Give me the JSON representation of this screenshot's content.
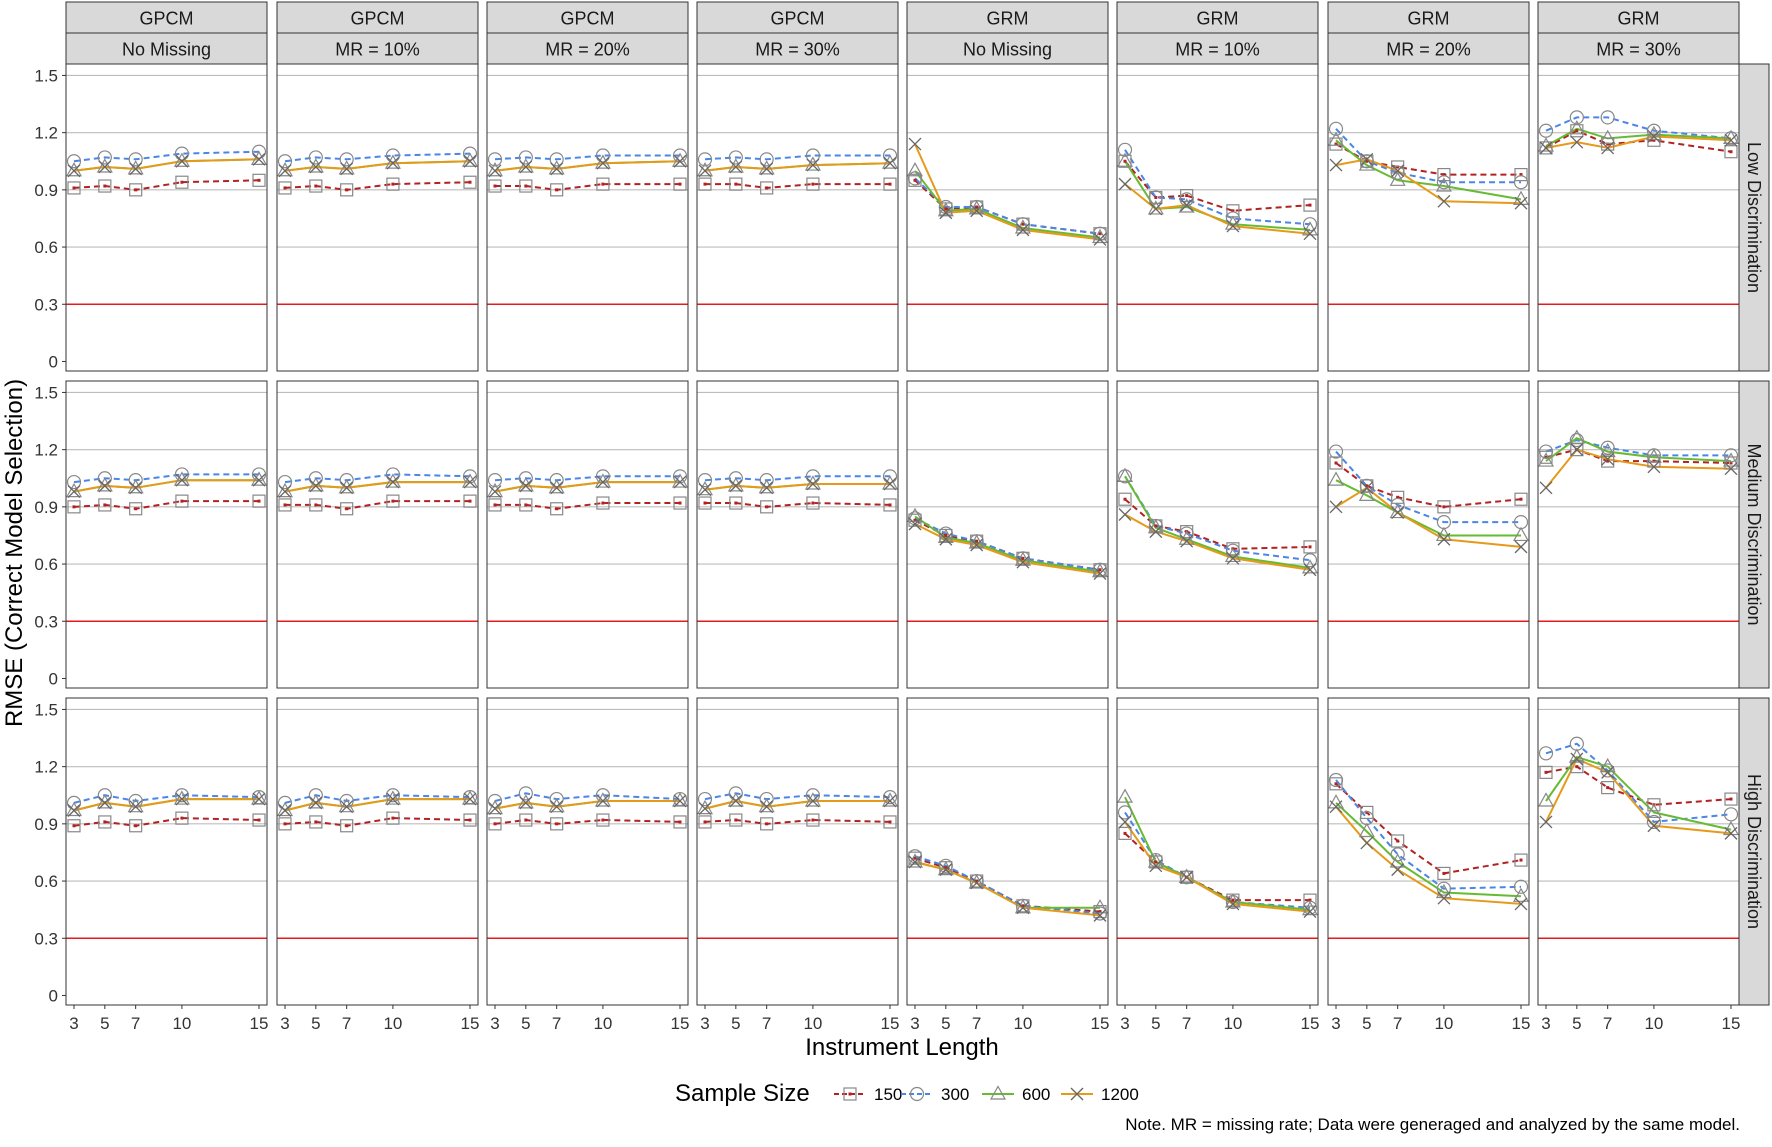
{
  "chart_data": {
    "type": "line",
    "facet_cols": [
      {
        "model": "GPCM",
        "condition": "No Missing"
      },
      {
        "model": "GPCM",
        "condition": "MR = 10%"
      },
      {
        "model": "GPCM",
        "condition": "MR = 20%"
      },
      {
        "model": "GPCM",
        "condition": "MR = 30%"
      },
      {
        "model": "GRM",
        "condition": "No Missing"
      },
      {
        "model": "GRM",
        "condition": "MR = 10%"
      },
      {
        "model": "GRM",
        "condition": "MR = 20%"
      },
      {
        "model": "GRM",
        "condition": "MR = 30%"
      }
    ],
    "facet_rows": [
      "Low Discrimination",
      "Medium Discrimination",
      "High Discrimination"
    ],
    "x": [
      3,
      5,
      7,
      10,
      15
    ],
    "x_ticks": [
      "3",
      "5",
      "7",
      "10",
      "15"
    ],
    "xlim": [
      3,
      15
    ],
    "ylim": [
      -0.05,
      1.56
    ],
    "y_ticks": [
      0,
      0.3,
      0.6,
      0.9,
      1.2,
      1.5
    ],
    "y_tick_labels": [
      "0",
      "0.3",
      "0.6",
      "0.9",
      "1.2",
      "1.5"
    ],
    "xlabel": "Instrument Length",
    "ylabel": "RMSE (Correct Model Selection)",
    "reference_line": {
      "y": 0.3,
      "color": "#e41a1c"
    },
    "grid": true,
    "legend": {
      "title": "Sample Size",
      "position": "bottom"
    },
    "series_styles": [
      {
        "name": "150",
        "color": "#b22222",
        "dash": "6,4",
        "marker": "square"
      },
      {
        "name": "300",
        "color": "#4a86e8",
        "dash": "6,4",
        "marker": "circle"
      },
      {
        "name": "600",
        "color": "#66bb33",
        "dash": "",
        "marker": "triangle"
      },
      {
        "name": "1200",
        "color": "#e69a1a",
        "dash": "",
        "marker": "x"
      }
    ],
    "panels": [
      [
        [
          [
            0.91,
            0.92,
            0.9,
            0.94,
            0.95
          ],
          [
            1.05,
            1.07,
            1.06,
            1.09,
            1.1
          ],
          [
            1.0,
            1.02,
            1.01,
            1.05,
            1.06
          ],
          [
            1.0,
            1.02,
            1.01,
            1.05,
            1.06
          ]
        ],
        [
          [
            0.91,
            0.92,
            0.9,
            0.93,
            0.94
          ],
          [
            1.05,
            1.07,
            1.06,
            1.08,
            1.09
          ],
          [
            1.0,
            1.02,
            1.01,
            1.04,
            1.05
          ],
          [
            1.0,
            1.02,
            1.01,
            1.04,
            1.05
          ]
        ],
        [
          [
            0.92,
            0.92,
            0.9,
            0.93,
            0.93
          ],
          [
            1.06,
            1.07,
            1.06,
            1.08,
            1.08
          ],
          [
            1.0,
            1.02,
            1.01,
            1.04,
            1.05
          ],
          [
            1.0,
            1.02,
            1.01,
            1.04,
            1.05
          ]
        ],
        [
          [
            0.93,
            0.93,
            0.91,
            0.93,
            0.93
          ],
          [
            1.06,
            1.07,
            1.06,
            1.08,
            1.08
          ],
          [
            1.0,
            1.02,
            1.01,
            1.03,
            1.04
          ],
          [
            1.0,
            1.02,
            1.01,
            1.03,
            1.04
          ]
        ],
        [
          [
            0.95,
            0.8,
            0.81,
            0.72,
            0.67
          ],
          [
            0.96,
            0.81,
            0.81,
            0.72,
            0.67
          ],
          [
            1.0,
            0.79,
            0.8,
            0.7,
            0.65
          ],
          [
            1.14,
            0.78,
            0.79,
            0.69,
            0.64
          ]
        ],
        [
          [
            1.05,
            0.86,
            0.87,
            0.79,
            0.82
          ],
          [
            1.11,
            0.86,
            0.85,
            0.75,
            0.72
          ],
          [
            1.05,
            0.8,
            0.81,
            0.72,
            0.69
          ],
          [
            0.93,
            0.8,
            0.82,
            0.71,
            0.67
          ]
        ],
        [
          [
            1.14,
            1.05,
            1.02,
            0.98,
            0.98
          ],
          [
            1.22,
            1.05,
            0.99,
            0.94,
            0.94
          ],
          [
            1.16,
            1.03,
            0.95,
            0.92,
            0.85
          ],
          [
            1.03,
            1.06,
            1.0,
            0.84,
            0.83
          ]
        ],
        [
          [
            1.12,
            1.21,
            1.14,
            1.16,
            1.1
          ],
          [
            1.21,
            1.28,
            1.28,
            1.21,
            1.17
          ],
          [
            1.13,
            1.22,
            1.17,
            1.19,
            1.17
          ],
          [
            1.12,
            1.15,
            1.12,
            1.18,
            1.16
          ]
        ]
      ],
      [
        [
          [
            0.9,
            0.91,
            0.89,
            0.93,
            0.93
          ],
          [
            1.03,
            1.05,
            1.04,
            1.07,
            1.07
          ],
          [
            0.98,
            1.01,
            1.0,
            1.04,
            1.04
          ],
          [
            0.98,
            1.01,
            1.0,
            1.04,
            1.04
          ]
        ],
        [
          [
            0.91,
            0.91,
            0.89,
            0.93,
            0.93
          ],
          [
            1.03,
            1.05,
            1.04,
            1.07,
            1.06
          ],
          [
            0.98,
            1.01,
            1.0,
            1.03,
            1.03
          ],
          [
            0.98,
            1.01,
            1.0,
            1.03,
            1.03
          ]
        ],
        [
          [
            0.91,
            0.91,
            0.89,
            0.92,
            0.92
          ],
          [
            1.04,
            1.05,
            1.04,
            1.06,
            1.06
          ],
          [
            0.98,
            1.01,
            1.0,
            1.03,
            1.03
          ],
          [
            0.98,
            1.01,
            1.0,
            1.03,
            1.03
          ]
        ],
        [
          [
            0.92,
            0.92,
            0.9,
            0.92,
            0.91
          ],
          [
            1.04,
            1.05,
            1.04,
            1.06,
            1.06
          ],
          [
            0.99,
            1.01,
            1.0,
            1.02,
            1.02
          ],
          [
            0.99,
            1.01,
            1.0,
            1.02,
            1.02
          ]
        ],
        [
          [
            0.83,
            0.75,
            0.72,
            0.63,
            0.57
          ],
          [
            0.84,
            0.76,
            0.72,
            0.63,
            0.57
          ],
          [
            0.85,
            0.74,
            0.71,
            0.62,
            0.56
          ],
          [
            0.81,
            0.73,
            0.7,
            0.61,
            0.55
          ]
        ],
        [
          [
            0.94,
            0.8,
            0.77,
            0.68,
            0.69
          ],
          [
            1.06,
            0.8,
            0.76,
            0.67,
            0.62
          ],
          [
            1.06,
            0.79,
            0.73,
            0.64,
            0.58
          ],
          [
            0.86,
            0.77,
            0.72,
            0.63,
            0.57
          ]
        ],
        [
          [
            1.13,
            1.01,
            0.95,
            0.9,
            0.94
          ],
          [
            1.19,
            1.01,
            0.91,
            0.82,
            0.82
          ],
          [
            1.04,
            0.96,
            0.87,
            0.75,
            0.75
          ],
          [
            0.9,
            1.0,
            0.87,
            0.73,
            0.69
          ]
        ],
        [
          [
            1.16,
            1.2,
            1.14,
            1.14,
            1.13
          ],
          [
            1.19,
            1.25,
            1.21,
            1.17,
            1.17
          ],
          [
            1.14,
            1.26,
            1.19,
            1.16,
            1.14
          ],
          [
            1.0,
            1.2,
            1.15,
            1.11,
            1.1
          ]
        ]
      ],
      [
        [
          [
            0.89,
            0.91,
            0.89,
            0.93,
            0.92
          ],
          [
            1.01,
            1.05,
            1.02,
            1.05,
            1.04
          ],
          [
            0.97,
            1.01,
            0.99,
            1.03,
            1.03
          ],
          [
            0.97,
            1.01,
            0.99,
            1.03,
            1.03
          ]
        ],
        [
          [
            0.9,
            0.91,
            0.89,
            0.93,
            0.92
          ],
          [
            1.01,
            1.05,
            1.02,
            1.05,
            1.04
          ],
          [
            0.97,
            1.01,
            0.99,
            1.03,
            1.03
          ],
          [
            0.97,
            1.01,
            0.99,
            1.03,
            1.03
          ]
        ],
        [
          [
            0.9,
            0.92,
            0.9,
            0.92,
            0.91
          ],
          [
            1.02,
            1.06,
            1.03,
            1.05,
            1.03
          ],
          [
            0.98,
            1.01,
            0.99,
            1.02,
            1.02
          ],
          [
            0.98,
            1.01,
            0.99,
            1.02,
            1.02
          ]
        ],
        [
          [
            0.91,
            0.92,
            0.9,
            0.92,
            0.91
          ],
          [
            1.03,
            1.06,
            1.03,
            1.05,
            1.04
          ],
          [
            0.98,
            1.02,
            0.99,
            1.02,
            1.02
          ],
          [
            0.98,
            1.02,
            0.99,
            1.02,
            1.02
          ]
        ],
        [
          [
            0.72,
            0.67,
            0.6,
            0.47,
            0.44
          ],
          [
            0.73,
            0.68,
            0.6,
            0.47,
            0.43
          ],
          [
            0.7,
            0.66,
            0.59,
            0.46,
            0.46
          ],
          [
            0.7,
            0.66,
            0.59,
            0.46,
            0.42
          ]
        ],
        [
          [
            0.85,
            0.7,
            0.62,
            0.5,
            0.5
          ],
          [
            0.96,
            0.71,
            0.62,
            0.49,
            0.46
          ],
          [
            1.04,
            0.7,
            0.62,
            0.49,
            0.45
          ],
          [
            0.91,
            0.68,
            0.62,
            0.48,
            0.44
          ]
        ],
        [
          [
            1.11,
            0.96,
            0.81,
            0.64,
            0.71
          ],
          [
            1.13,
            0.93,
            0.74,
            0.56,
            0.57
          ],
          [
            1.01,
            0.86,
            0.7,
            0.54,
            0.52
          ],
          [
            0.99,
            0.8,
            0.66,
            0.51,
            0.48
          ]
        ],
        [
          [
            1.17,
            1.2,
            1.09,
            1.0,
            1.03
          ],
          [
            1.27,
            1.32,
            1.18,
            0.91,
            0.95
          ],
          [
            1.02,
            1.25,
            1.2,
            0.96,
            0.87
          ],
          [
            0.91,
            1.24,
            1.17,
            0.89,
            0.85
          ]
        ]
      ]
    ]
  },
  "note": "Note. MR = missing rate; Data were generaged and analyzed by the same model."
}
